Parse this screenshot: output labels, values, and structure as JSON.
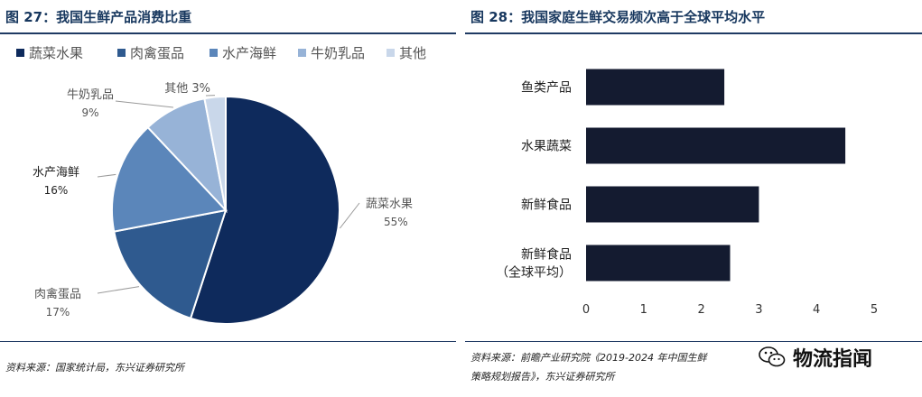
{
  "left": {
    "title": "图 27：我国生鲜产品消费比重",
    "source": "资料来源：国家统计局，东兴证券研究所"
  },
  "right": {
    "title": "图 28：我国家庭生鲜交易频次高于全球平均水平",
    "source_line1": "资料来源：前瞻产业研究院《2019-2024 年中国生鲜",
    "source_line2": "策略规划报告》，东兴证券研究所"
  },
  "watermark": {
    "text": "物流指闻",
    "icon": "wechat-icon"
  },
  "chart_data": [
    {
      "type": "pie",
      "title": "",
      "legend_position": "top",
      "labels": [
        "蔬菜水果",
        "肉禽蛋品",
        "水产海鲜",
        "牛奶乳品",
        "其他"
      ],
      "values": [
        55,
        17,
        16,
        9,
        3
      ],
      "value_labels": [
        "55%",
        "17%",
        "16%",
        "9%",
        "3%"
      ],
      "colors": [
        "#0e2a5c",
        "#2f5a8f",
        "#5b86ba",
        "#97b3d7",
        "#c9d7ea"
      ]
    },
    {
      "type": "bar",
      "orientation": "horizontal",
      "title": "",
      "categories": [
        "鱼类产品",
        "水果蔬菜",
        "新鲜食品",
        "新鲜食品（全球平均）"
      ],
      "category_lines": [
        [
          "鱼类产品"
        ],
        [
          "水果蔬菜"
        ],
        [
          "新鲜食品"
        ],
        [
          "新鲜食品",
          "（全球平均）"
        ]
      ],
      "values": [
        2.4,
        4.5,
        3.0,
        2.5
      ],
      "xlim": [
        0,
        5
      ],
      "xticks": [
        "0",
        "1",
        "2",
        "3",
        "4",
        "5"
      ],
      "grid": false,
      "color": "#141b30"
    }
  ]
}
